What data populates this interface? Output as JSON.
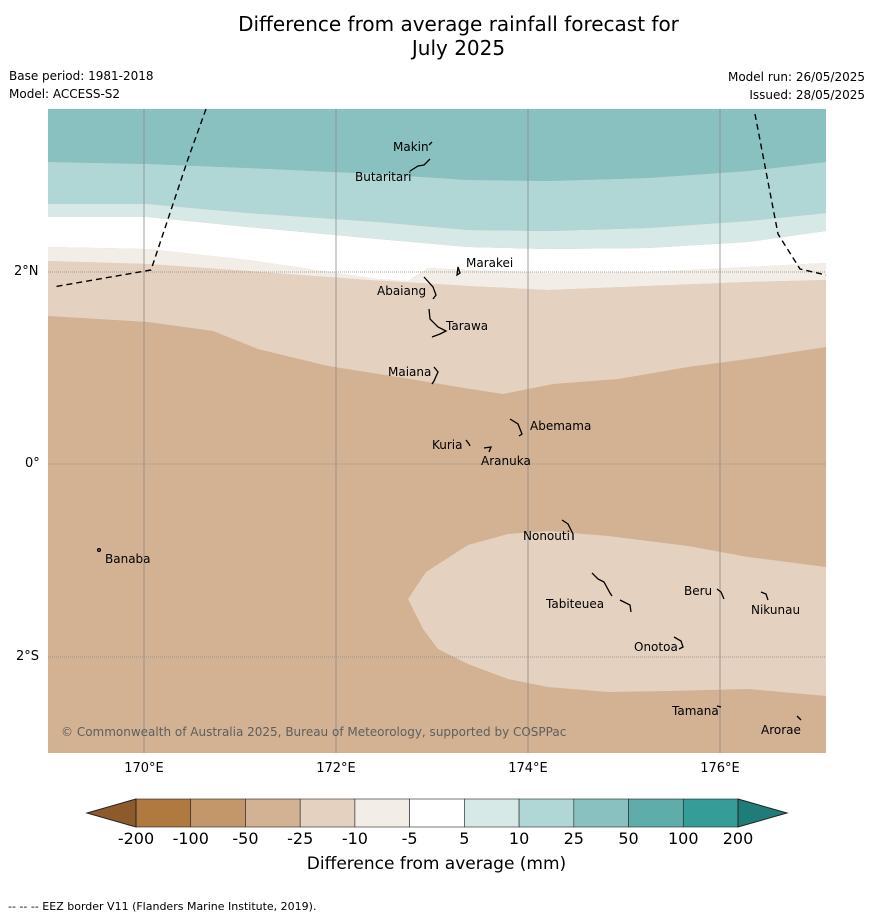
{
  "title_line1": "Difference from average rainfall forecast for",
  "title_line2": "July 2025",
  "base_period": "Base period: 1981-2018",
  "model": "Model: ACCESS-S2",
  "model_run": "Model run: 26/05/2025",
  "issued": "Issued: 28/05/2025",
  "lat_labels": [
    "2°N",
    "0°",
    "2°S"
  ],
  "lon_labels": [
    "170°E",
    "172°E",
    "174°E",
    "176°E"
  ],
  "places": {
    "makin": "Makin",
    "butaritari": "Butaritari",
    "marakei": "Marakei",
    "abaiang": "Abaiang",
    "tarawa": "Tarawa",
    "maiana": "Maiana",
    "abemama": "Abemama",
    "kuria": "Kuria",
    "aranuka": "Aranuka",
    "banaba": "Banaba",
    "nonouti": "Nonouti",
    "beru": "Beru",
    "tabiteuea": "Tabiteuea",
    "nikunau": "Nikunau",
    "onotoa": "Onotoa",
    "tamana": "Tamana",
    "arorae": "Arorae"
  },
  "copyright": "© Commonwealth of Australia 2025, Bureau of Meteorology, supported by COSPPac",
  "colorbar": {
    "ticks": [
      "-200",
      "-100",
      "-50",
      "-25",
      "-10",
      "-5",
      "5",
      "10",
      "25",
      "50",
      "100",
      "200"
    ],
    "colors": [
      "#b07940",
      "#c4976b",
      "#d3b293",
      "#e4d1c0",
      "#f2ede6",
      "#ffffff",
      "#d6e9e7",
      "#b0d7d5",
      "#88c1c0",
      "#5eadab",
      "#359c98"
    ],
    "low_extend_color": "#8c5a2b",
    "high_extend_color": "#1f7c79",
    "title": "Difference from average (mm)"
  },
  "eez_note": "--  --  -- EEZ border V11 (Flanders Marine Institute, 2019)."
}
